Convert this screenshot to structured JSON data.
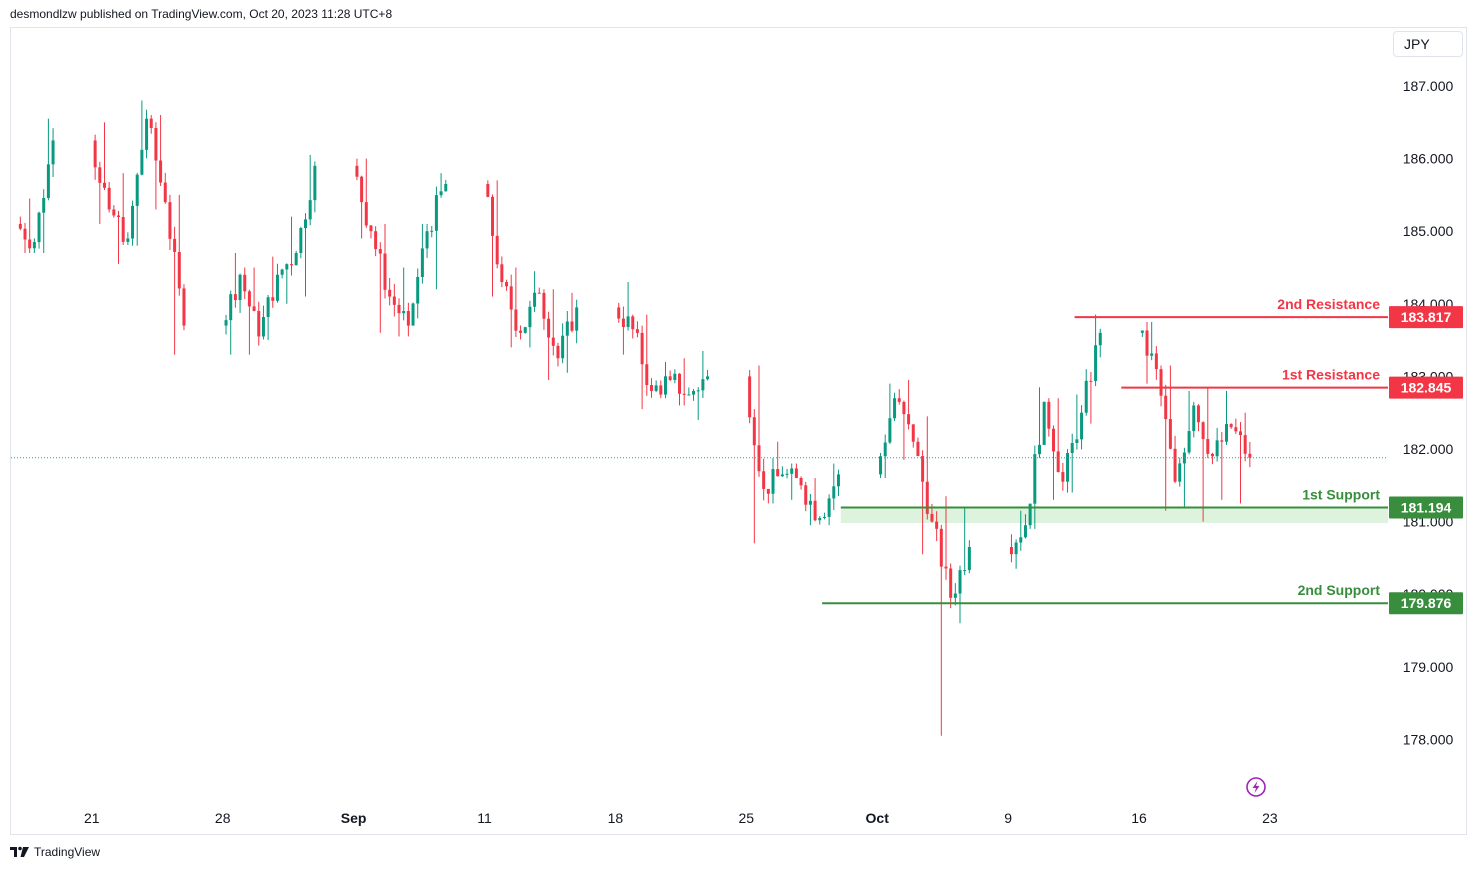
{
  "header": {
    "publisher_text": "desmondlzw published on TradingView.com, Oct 20, 2023 11:28 UTC+8"
  },
  "footer": {
    "brand": "TradingView"
  },
  "currency": "JPY",
  "colors": {
    "up": "#089981",
    "down": "#f23645",
    "resistance": "#f23645",
    "support": "#388e3c",
    "support_zone": "#d4f0d4",
    "dotted_line": "#26a69a",
    "grid": "#ffffff"
  },
  "chart_data": {
    "type": "candlestick",
    "y_axis": {
      "min": 177.3,
      "max": 187.6,
      "ticks": [
        "187.000",
        "186.000",
        "185.000",
        "184.000",
        "183.000",
        "182.000",
        "181.000",
        "180.000",
        "179.000",
        "178.000"
      ]
    },
    "x_axis": {
      "ticks": [
        {
          "label": "21",
          "bold": false
        },
        {
          "label": "28",
          "bold": false
        },
        {
          "label": "Sep",
          "bold": true
        },
        {
          "label": "11",
          "bold": false
        },
        {
          "label": "18",
          "bold": false
        },
        {
          "label": "25",
          "bold": false
        },
        {
          "label": "Oct",
          "bold": true
        },
        {
          "label": "9",
          "bold": false
        },
        {
          "label": "16",
          "bold": false
        },
        {
          "label": "23",
          "bold": false
        }
      ]
    },
    "current_price": 181.88,
    "levels": [
      {
        "name": "2nd Resistance",
        "value": "183.817",
        "price": 183.817,
        "kind": "resistance",
        "start_day": 56.5
      },
      {
        "name": "1st Resistance",
        "value": "182.845",
        "price": 182.845,
        "kind": "resistance",
        "start_day": 59.0
      },
      {
        "name": "1st Support",
        "value": "181.194",
        "price": 181.194,
        "kind": "support",
        "start_day": 44.0,
        "zone_low": 180.98
      },
      {
        "name": "2nd Support",
        "value": "179.876",
        "price": 179.876,
        "kind": "support",
        "start_day": 43.0
      }
    ],
    "ohlc_daily": [
      {
        "date": "Aug 17",
        "o": 185.1,
        "h": 185.45,
        "l": 184.7,
        "c": 184.85
      },
      {
        "date": "Aug 18",
        "o": 184.85,
        "h": 186.55,
        "l": 184.7,
        "c": 186.25
      },
      {
        "date": "Aug 21",
        "o": 186.25,
        "h": 186.5,
        "l": 185.1,
        "c": 185.3
      },
      {
        "date": "Aug 22",
        "o": 185.3,
        "h": 185.8,
        "l": 184.55,
        "c": 184.9
      },
      {
        "date": "Aug 23",
        "o": 184.9,
        "h": 186.8,
        "l": 184.8,
        "c": 186.55
      },
      {
        "date": "Aug 24",
        "o": 186.55,
        "h": 186.6,
        "l": 185.3,
        "c": 185.4
      },
      {
        "date": "Aug 25",
        "o": 185.4,
        "h": 185.5,
        "l": 183.3,
        "c": 183.7
      },
      {
        "date": "Aug 28",
        "o": 183.7,
        "h": 184.7,
        "l": 183.3,
        "c": 184.4
      },
      {
        "date": "Aug 29",
        "o": 184.4,
        "h": 184.5,
        "l": 183.3,
        "c": 183.55
      },
      {
        "date": "Aug 30",
        "o": 183.55,
        "h": 184.65,
        "l": 183.5,
        "c": 184.4
      },
      {
        "date": "Aug 31",
        "o": 184.4,
        "h": 185.2,
        "l": 184.0,
        "c": 184.7
      },
      {
        "date": "Sep 1",
        "o": 184.7,
        "h": 186.05,
        "l": 184.1,
        "c": 185.9
      },
      {
        "date": "Sep 4",
        "o": 185.9,
        "h": 186.0,
        "l": 184.9,
        "c": 185.0
      },
      {
        "date": "Sep 5",
        "o": 185.0,
        "h": 185.1,
        "l": 183.6,
        "c": 184.1
      },
      {
        "date": "Sep 6",
        "o": 184.1,
        "h": 184.5,
        "l": 183.55,
        "c": 183.7
      },
      {
        "date": "Sep 7",
        "o": 183.7,
        "h": 185.1,
        "l": 183.8,
        "c": 185.0
      },
      {
        "date": "Sep 8",
        "o": 185.0,
        "h": 185.8,
        "l": 184.2,
        "c": 185.65
      },
      {
        "date": "Sep 11",
        "o": 185.65,
        "h": 185.7,
        "l": 184.1,
        "c": 184.3
      },
      {
        "date": "Sep 12",
        "o": 184.3,
        "h": 184.5,
        "l": 183.4,
        "c": 183.6
      },
      {
        "date": "Sep 13",
        "o": 183.6,
        "h": 184.45,
        "l": 183.4,
        "c": 184.15
      },
      {
        "date": "Sep 14",
        "o": 184.15,
        "h": 184.2,
        "l": 182.95,
        "c": 183.25
      },
      {
        "date": "Sep 15",
        "o": 183.25,
        "h": 184.15,
        "l": 183.05,
        "c": 183.95
      },
      {
        "date": "Sep 18",
        "o": 183.95,
        "h": 184.3,
        "l": 183.3,
        "c": 183.65
      },
      {
        "date": "Sep 19",
        "o": 183.65,
        "h": 183.85,
        "l": 182.55,
        "c": 182.8
      },
      {
        "date": "Sep 20",
        "o": 182.8,
        "h": 183.2,
        "l": 182.7,
        "c": 182.95
      },
      {
        "date": "Sep 21",
        "o": 182.95,
        "h": 183.25,
        "l": 182.6,
        "c": 182.75
      },
      {
        "date": "Sep 22",
        "o": 182.75,
        "h": 183.35,
        "l": 182.4,
        "c": 183.0
      },
      {
        "date": "Sep 25",
        "o": 183.0,
        "h": 183.15,
        "l": 180.7,
        "c": 181.45
      },
      {
        "date": "Sep 26",
        "o": 181.45,
        "h": 182.1,
        "l": 181.25,
        "c": 181.65
      },
      {
        "date": "Sep 27",
        "o": 181.65,
        "h": 181.8,
        "l": 181.3,
        "c": 181.5
      },
      {
        "date": "Sep 28",
        "o": 181.5,
        "h": 181.6,
        "l": 180.95,
        "c": 181.05
      },
      {
        "date": "Sep 29",
        "o": 181.05,
        "h": 181.8,
        "l": 180.95,
        "c": 181.65
      },
      {
        "date": "Oct 2",
        "o": 181.65,
        "h": 182.9,
        "l": 181.6,
        "c": 182.7
      },
      {
        "date": "Oct 3",
        "o": 182.7,
        "h": 182.95,
        "l": 181.85,
        "c": 182.1
      },
      {
        "date": "Oct 4",
        "o": 182.1,
        "h": 182.45,
        "l": 180.55,
        "c": 181.0
      },
      {
        "date": "Oct 5",
        "o": 181.0,
        "h": 181.35,
        "l": 178.05,
        "c": 179.95
      },
      {
        "date": "Oct 6",
        "o": 179.95,
        "h": 181.2,
        "l": 179.6,
        "c": 180.65
      },
      {
        "date": "Oct 9",
        "o": 180.65,
        "h": 181.15,
        "l": 180.35,
        "c": 180.95
      },
      {
        "date": "Oct 10",
        "o": 180.95,
        "h": 182.85,
        "l": 180.9,
        "c": 182.65
      },
      {
        "date": "Oct 11",
        "o": 182.65,
        "h": 182.7,
        "l": 181.3,
        "c": 181.55
      },
      {
        "date": "Oct 12",
        "o": 181.55,
        "h": 182.75,
        "l": 181.4,
        "c": 182.5
      },
      {
        "date": "Oct 13",
        "o": 182.5,
        "h": 183.85,
        "l": 182.35,
        "c": 183.6
      },
      {
        "date": "Oct 16",
        "o": 183.6,
        "h": 183.75,
        "l": 182.9,
        "c": 183.1
      },
      {
        "date": "Oct 17",
        "o": 183.1,
        "h": 183.15,
        "l": 181.15,
        "c": 181.55
      },
      {
        "date": "Oct 18",
        "o": 181.55,
        "h": 182.8,
        "l": 181.2,
        "c": 182.6
      },
      {
        "date": "Oct 19",
        "o": 182.6,
        "h": 182.85,
        "l": 181.0,
        "c": 181.9
      },
      {
        "date": "Oct 20",
        "o": 181.9,
        "h": 182.8,
        "l": 181.3,
        "c": 182.3
      },
      {
        "date": "Oct 20 b",
        "o": 182.3,
        "h": 182.5,
        "l": 181.25,
        "c": 181.88
      }
    ]
  }
}
